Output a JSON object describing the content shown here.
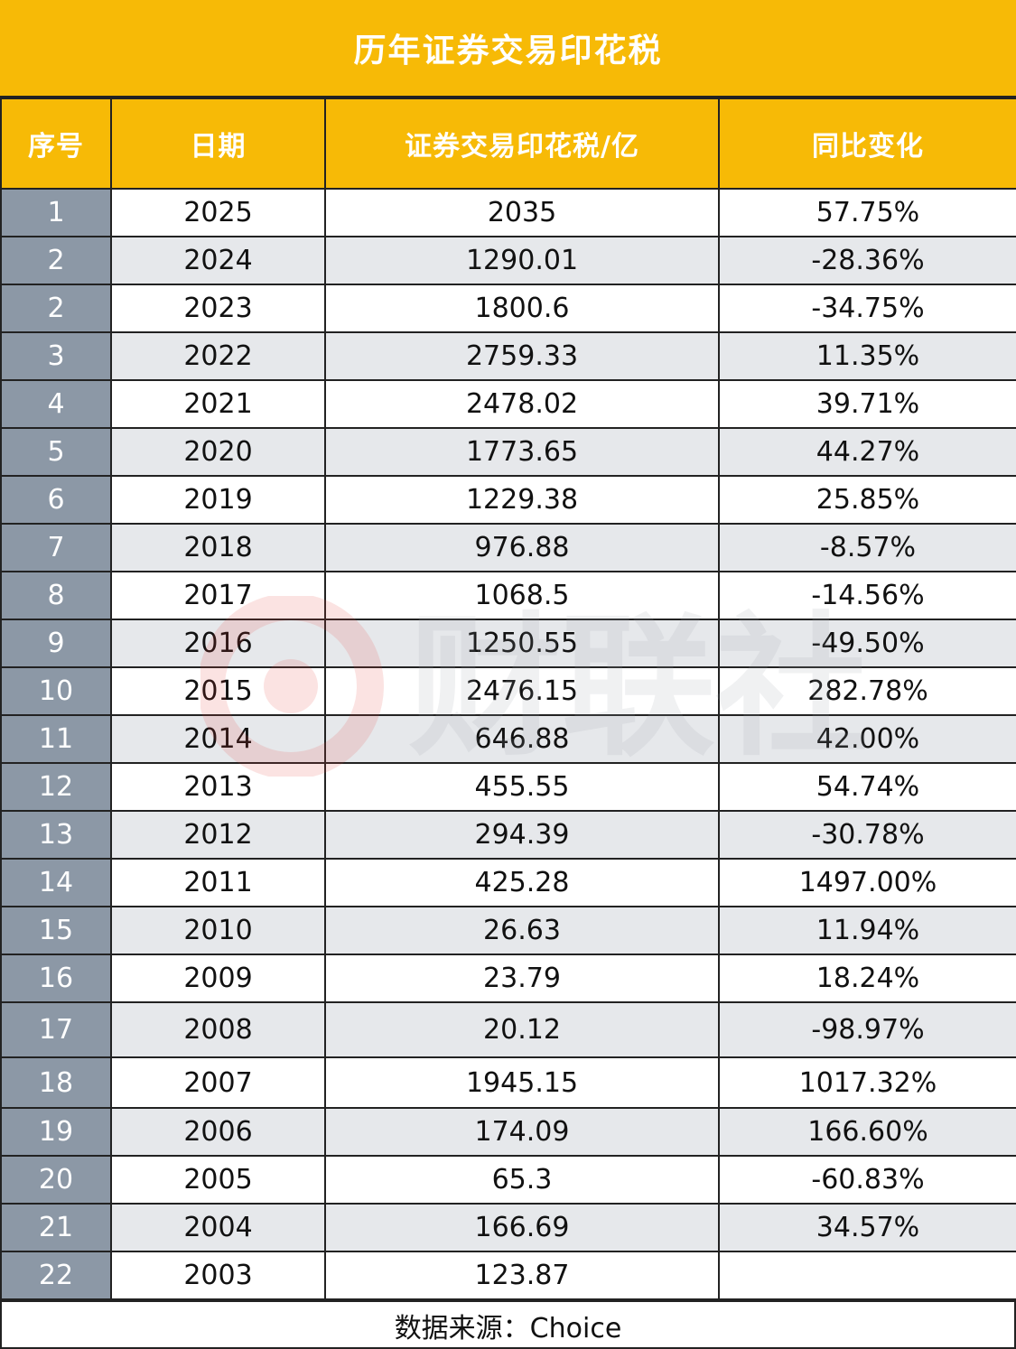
{
  "title": "历年证券交易印花税",
  "columns": [
    "序号",
    "日期",
    "证券交易印花税/亿",
    "同比变化"
  ],
  "rows": [
    {
      "idx": "1",
      "year": "2025",
      "tax": "2035",
      "change": "57.75%"
    },
    {
      "idx": "2",
      "year": "2024",
      "tax": "1290.01",
      "change": "-28.36%"
    },
    {
      "idx": "2",
      "year": "2023",
      "tax": "1800.6",
      "change": "-34.75%"
    },
    {
      "idx": "3",
      "year": "2022",
      "tax": "2759.33",
      "change": "11.35%"
    },
    {
      "idx": "4",
      "year": "2021",
      "tax": "2478.02",
      "change": "39.71%"
    },
    {
      "idx": "5",
      "year": "2020",
      "tax": "1773.65",
      "change": "44.27%"
    },
    {
      "idx": "6",
      "year": "2019",
      "tax": "1229.38",
      "change": "25.85%"
    },
    {
      "idx": "7",
      "year": "2018",
      "tax": "976.88",
      "change": "-8.57%"
    },
    {
      "idx": "8",
      "year": "2017",
      "tax": "1068.5",
      "change": "-14.56%"
    },
    {
      "idx": "9",
      "year": "2016",
      "tax": "1250.55",
      "change": "-49.50%"
    },
    {
      "idx": "10",
      "year": "2015",
      "tax": "2476.15",
      "change": "282.78%"
    },
    {
      "idx": "11",
      "year": "2014",
      "tax": "646.88",
      "change": "42.00%"
    },
    {
      "idx": "12",
      "year": "2013",
      "tax": "455.55",
      "change": "54.74%"
    },
    {
      "idx": "13",
      "year": "2012",
      "tax": "294.39",
      "change": "-30.78%"
    },
    {
      "idx": "14",
      "year": "2011",
      "tax": "425.28",
      "change": "1497.00%"
    },
    {
      "idx": "15",
      "year": "2010",
      "tax": "26.63",
      "change": "11.94%"
    },
    {
      "idx": "16",
      "year": "2009",
      "tax": "23.79",
      "change": "18.24%"
    },
    {
      "idx": "17",
      "year": "2008",
      "tax": "20.12",
      "change": "-98.97%"
    },
    {
      "idx": "18",
      "year": "2007",
      "tax": "1945.15",
      "change": "1017.32%"
    },
    {
      "idx": "19",
      "year": "2006",
      "tax": "174.09",
      "change": "166.60%"
    },
    {
      "idx": "20",
      "year": "2005",
      "tax": "65.3",
      "change": "-60.83%"
    },
    {
      "idx": "21",
      "year": "2004",
      "tax": "166.69",
      "change": "34.57%"
    },
    {
      "idx": "22",
      "year": "2003",
      "tax": "123.87",
      "change": ""
    }
  ],
  "footer": "数据来源：Choice",
  "watermark_text": "财联社",
  "colors": {
    "header": "#F7BA06",
    "index_cell": "#8C98A6",
    "alt_row": "#E6E8EB",
    "watermark": "#E8413A"
  }
}
